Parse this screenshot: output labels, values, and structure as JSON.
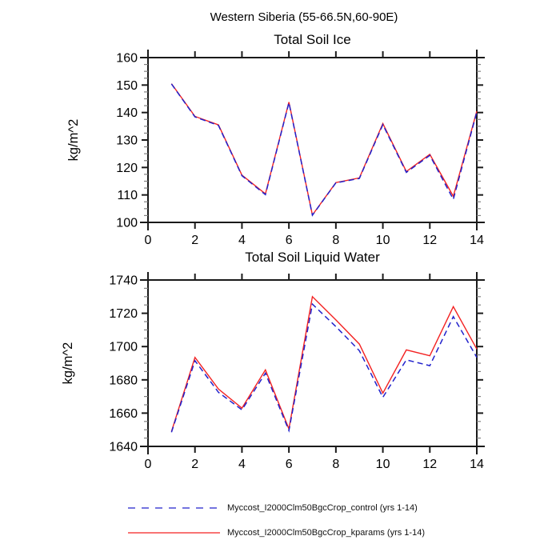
{
  "page": {
    "title": "Western Siberia (55-66.5N,60-90E)"
  },
  "colors": {
    "axis": "#1a1a1a",
    "minor_tick": "#808080",
    "control_blue": "#2222cc",
    "kparams_red": "#f32222"
  },
  "chart_data": [
    {
      "type": "line",
      "title": "Total Soil Ice",
      "xlabel": "",
      "ylabel": "kg/m^2",
      "xlim": [
        0,
        14
      ],
      "ylim": [
        100,
        160
      ],
      "xticks": [
        0,
        2,
        4,
        6,
        8,
        10,
        12,
        14
      ],
      "yticks": [
        100,
        110,
        120,
        130,
        140,
        150,
        160
      ],
      "y_minor_step": 2.5,
      "grid": false,
      "x": [
        1,
        2,
        3,
        4,
        5,
        6,
        7,
        8,
        9,
        10,
        11,
        12,
        13,
        14
      ],
      "series": [
        {
          "name": "control",
          "label": "Myccost_I2000Clm50BgcCrop_control (yrs 1-14)",
          "color": "#2222cc",
          "style": "dashed",
          "values": [
            150.4,
            138.4,
            135.3,
            117.0,
            110.1,
            143.6,
            102.6,
            114.4,
            116.0,
            135.6,
            118.2,
            124.4,
            108.4,
            140.2
          ]
        },
        {
          "name": "kparams",
          "label": "Myccost_I2000Clm50BgcCrop_kparams (yrs 1-14)",
          "color": "#f32222",
          "style": "solid",
          "values": [
            150.5,
            138.6,
            135.5,
            117.2,
            110.4,
            143.8,
            102.7,
            114.5,
            116.2,
            136.0,
            118.5,
            124.8,
            109.5,
            140.5
          ]
        }
      ]
    },
    {
      "type": "line",
      "title": "Total Soil Liquid Water",
      "xlabel": "",
      "ylabel": "kg/m^2",
      "xlim": [
        0,
        14
      ],
      "ylim": [
        1640,
        1740
      ],
      "xticks": [
        0,
        2,
        4,
        6,
        8,
        10,
        12,
        14
      ],
      "yticks": [
        1640,
        1660,
        1680,
        1700,
        1720,
        1740
      ],
      "y_minor_step": 5,
      "grid": false,
      "x": [
        1,
        2,
        3,
        4,
        5,
        6,
        7,
        8,
        9,
        10,
        11,
        12,
        13,
        14
      ],
      "series": [
        {
          "name": "control",
          "label": "Myccost_I2000Clm50BgcCrop_control (yrs 1-14)",
          "color": "#2222cc",
          "style": "dashed",
          "values": [
            1648.5,
            1691.5,
            1672.5,
            1662.0,
            1684.0,
            1649.5,
            1725.5,
            1712.0,
            1697.5,
            1669.5,
            1692.0,
            1688.5,
            1718.0,
            1693.5
          ]
        },
        {
          "name": "kparams",
          "label": "Myccost_I2000Clm50BgcCrop_kparams (yrs 1-14)",
          "color": "#f32222",
          "style": "solid",
          "values": [
            1649.0,
            1693.5,
            1674.5,
            1663.0,
            1686.0,
            1650.5,
            1730.0,
            1716.0,
            1701.5,
            1672.0,
            1698.0,
            1694.5,
            1724.0,
            1698.5
          ]
        }
      ]
    }
  ],
  "legend": {
    "items": [
      {
        "label": "Myccost_I2000Clm50BgcCrop_control (yrs 1-14)",
        "color": "#2222cc",
        "style": "dashed"
      },
      {
        "label": "Myccost_I2000Clm50BgcCrop_kparams (yrs 1-14)",
        "color": "#f32222",
        "style": "solid"
      }
    ]
  }
}
